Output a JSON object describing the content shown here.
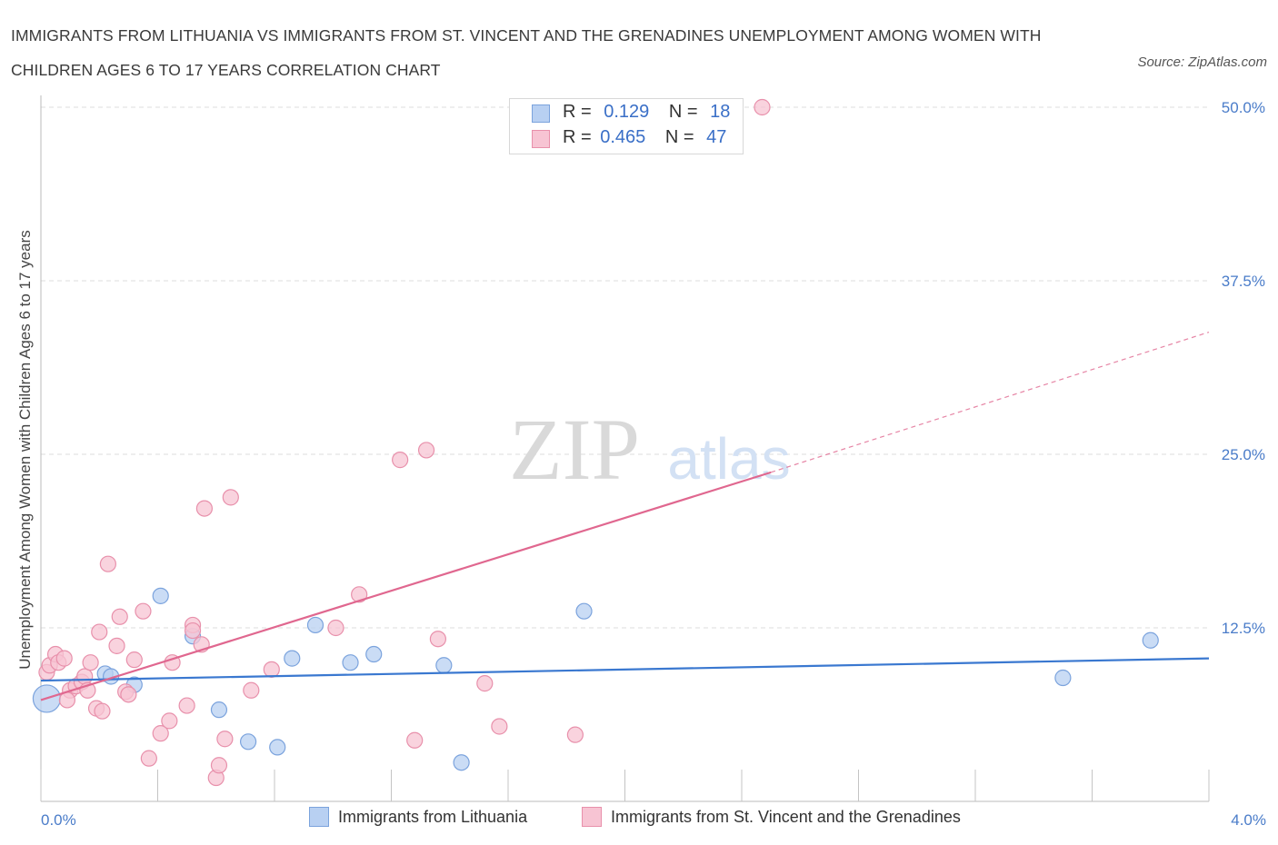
{
  "header": {
    "title": "IMMIGRANTS FROM LITHUANIA VS IMMIGRANTS FROM ST. VINCENT AND THE GRENADINES UNEMPLOYMENT AMONG WOMEN WITH CHILDREN AGES 6 TO 17 YEARS CORRELATION CHART",
    "source": "Source: ZipAtlas.com"
  },
  "watermark": {
    "zip": "ZIP",
    "atlas": "atlas"
  },
  "legend": {
    "r_label": "R =",
    "n_label": "N =",
    "series": [
      {
        "name": "Immigrants from Lithuania",
        "r": "0.129",
        "n": "18"
      },
      {
        "name": "Immigrants from St. Vincent and the Grenadines",
        "r": "0.465",
        "n": "47"
      }
    ]
  },
  "colors": {
    "blue_fill": "#b8d0f2",
    "blue_stroke": "#7ba3dd",
    "blue_line": "#3a78d0",
    "pink_fill": "#f7c4d3",
    "pink_stroke": "#e890ab",
    "pink_line": "#e0678f",
    "grid": "#dcdcdc",
    "axis_text": "#4a7cc9"
  },
  "chart_data": {
    "type": "scatter",
    "title": "IMMIGRANTS FROM LITHUANIA VS IMMIGRANTS FROM ST. VINCENT AND THE GRENADINES UNEMPLOYMENT AMONG WOMEN WITH CHILDREN AGES 6 TO 17 YEARS CORRELATION CHART",
    "xlabel": "",
    "ylabel": "Unemployment Among Women with Children Ages 6 to 17 years",
    "xlim": [
      0,
      4.0
    ],
    "ylim": [
      0,
      50.0
    ],
    "x_tick_labels": [
      "0.0%",
      "4.0%"
    ],
    "y_ticks": [
      12.5,
      25.0,
      37.5,
      50.0
    ],
    "y_tick_labels": [
      "12.5%",
      "25.0%",
      "37.5%",
      "50.0%"
    ],
    "grid": true,
    "series": [
      {
        "name": "Immigrants from Lithuania",
        "color": "blue",
        "points": [
          [
            0.02,
            7.4
          ],
          [
            0.22,
            9.2
          ],
          [
            0.24,
            9.0
          ],
          [
            0.32,
            8.4
          ],
          [
            0.41,
            14.8
          ],
          [
            0.52,
            11.9
          ],
          [
            0.61,
            6.6
          ],
          [
            0.71,
            4.3
          ],
          [
            0.81,
            3.9
          ],
          [
            0.94,
            12.7
          ],
          [
            0.86,
            10.3
          ],
          [
            1.06,
            10.0
          ],
          [
            1.14,
            10.6
          ],
          [
            1.38,
            9.8
          ],
          [
            1.44,
            2.8
          ],
          [
            1.86,
            13.7
          ],
          [
            3.5,
            8.9
          ],
          [
            3.8,
            11.6
          ]
        ],
        "big_point_index": 0,
        "trend": {
          "x0": 0.0,
          "y0": 8.7,
          "x1": 4.0,
          "y1": 10.3
        }
      },
      {
        "name": "Immigrants from St. Vincent and the Grenadines",
        "color": "pink",
        "points": [
          [
            0.02,
            9.3
          ],
          [
            0.03,
            9.8
          ],
          [
            0.05,
            10.6
          ],
          [
            0.06,
            10.0
          ],
          [
            0.08,
            10.3
          ],
          [
            0.1,
            8.0
          ],
          [
            0.12,
            8.3
          ],
          [
            0.14,
            8.6
          ],
          [
            0.15,
            9.0
          ],
          [
            0.16,
            8.0
          ],
          [
            0.17,
            10.0
          ],
          [
            0.19,
            6.7
          ],
          [
            0.2,
            12.2
          ],
          [
            0.21,
            6.5
          ],
          [
            0.23,
            17.1
          ],
          [
            0.26,
            11.2
          ],
          [
            0.27,
            13.3
          ],
          [
            0.29,
            7.9
          ],
          [
            0.3,
            7.7
          ],
          [
            0.32,
            10.2
          ],
          [
            0.35,
            13.7
          ],
          [
            0.37,
            3.1
          ],
          [
            0.41,
            4.9
          ],
          [
            0.44,
            5.8
          ],
          [
            0.45,
            10.0
          ],
          [
            0.5,
            6.9
          ],
          [
            0.52,
            12.7
          ],
          [
            0.52,
            12.3
          ],
          [
            0.55,
            11.3
          ],
          [
            0.56,
            21.1
          ],
          [
            0.6,
            1.7
          ],
          [
            0.61,
            2.6
          ],
          [
            0.63,
            4.5
          ],
          [
            0.65,
            21.9
          ],
          [
            0.72,
            8.0
          ],
          [
            0.79,
            9.5
          ],
          [
            1.01,
            12.5
          ],
          [
            1.09,
            14.9
          ],
          [
            1.23,
            24.6
          ],
          [
            1.28,
            4.4
          ],
          [
            1.32,
            25.3
          ],
          [
            1.36,
            11.7
          ],
          [
            1.52,
            8.5
          ],
          [
            1.57,
            5.4
          ],
          [
            1.83,
            4.8
          ],
          [
            2.47,
            50.0
          ],
          [
            0.09,
            7.3
          ]
        ],
        "trend": {
          "x0": 0.0,
          "y0": 7.3,
          "x1": 2.5,
          "y1": 23.7
        },
        "trend_dashed": {
          "x0": 2.5,
          "y0": 23.7,
          "x1": 4.0,
          "y1": 33.8
        }
      }
    ]
  }
}
